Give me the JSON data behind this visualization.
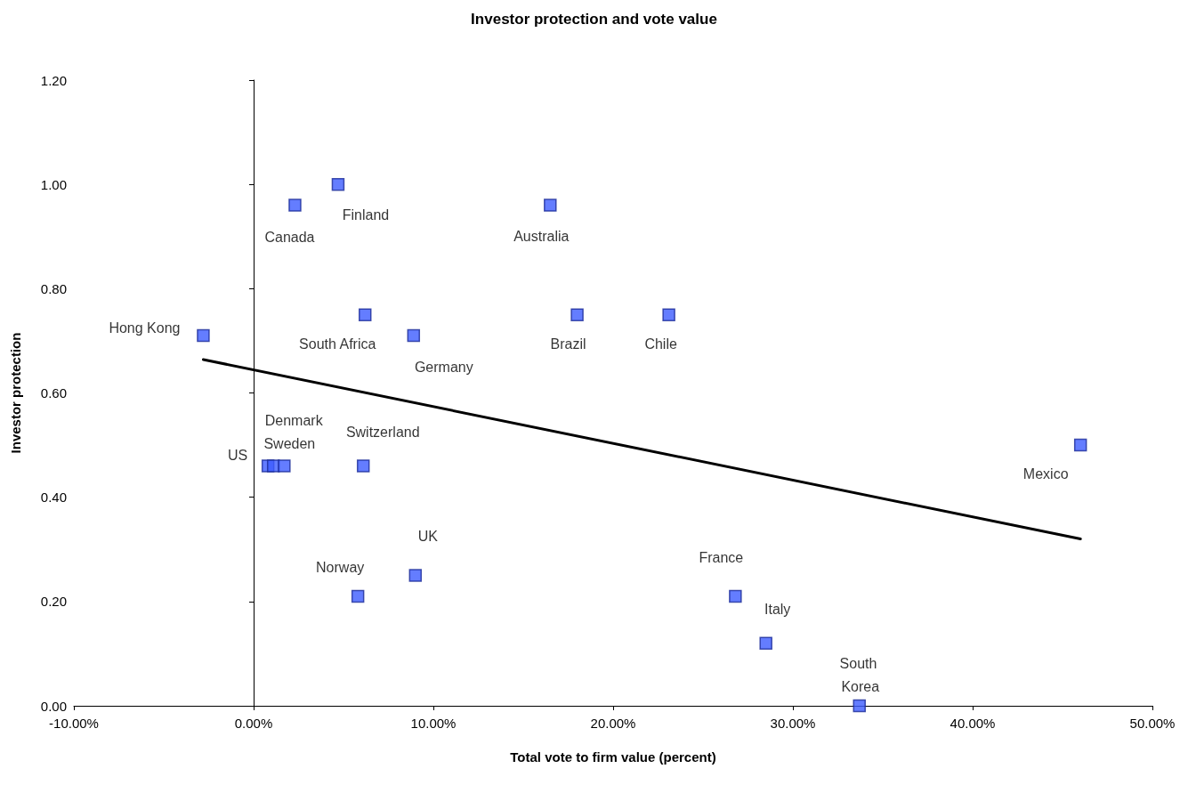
{
  "chart_data": {
    "type": "scatter",
    "title": "Investor protection and vote value",
    "xlabel": "Total vote to firm value (percent)",
    "ylabel": "Investor protection",
    "xlim": [
      -10,
      50
    ],
    "xticks": [
      {
        "value": -10,
        "label": "-10.00%"
      },
      {
        "value": 0,
        "label": "0.00%"
      },
      {
        "value": 10,
        "label": "10.00%"
      },
      {
        "value": 20,
        "label": "20.00%"
      },
      {
        "value": 30,
        "label": "30.00%"
      },
      {
        "value": 40,
        "label": "40.00%"
      },
      {
        "value": 50,
        "label": "50.00%"
      }
    ],
    "ylim": [
      0,
      1.2
    ],
    "yticks": [
      {
        "value": 0,
        "label": "0.00"
      },
      {
        "value": 0.2,
        "label": "0.20"
      },
      {
        "value": 0.4,
        "label": "0.40"
      },
      {
        "value": 0.6,
        "label": "0.60"
      },
      {
        "value": 0.8,
        "label": "0.80"
      },
      {
        "value": 1,
        "label": "1.00"
      },
      {
        "value": 1.2,
        "label": "1.20"
      }
    ],
    "marker": "square",
    "series": [
      {
        "color": "#3d5cff",
        "x": [
          -2.8,
          2.3,
          4.7,
          16.5,
          6.2,
          8.9,
          18.0,
          23.1,
          46.0,
          6.1,
          0.8,
          1.1,
          1.7,
          5.8,
          9.0,
          26.8,
          28.5,
          33.7
        ],
        "values": [
          0.71,
          0.96,
          1.0,
          0.96,
          0.75,
          0.71,
          0.75,
          0.75,
          0.5,
          0.46,
          0.46,
          0.46,
          0.46,
          0.21,
          0.25,
          0.21,
          0.12,
          0.0
        ]
      },
      {
        "type": "line",
        "color": "#000000",
        "marker": "none",
        "x": [
          -2.8,
          46.0
        ],
        "values": [
          0.664,
          0.32
        ]
      }
    ],
    "annotations": [
      {
        "text": "Hong Kong",
        "x": -2.8,
        "y": 0.71
      },
      {
        "text": "Canada",
        "x": 2.3,
        "y": 0.96
      },
      {
        "text": "Finland",
        "x": 4.7,
        "y": 1.0
      },
      {
        "text": "Australia",
        "x": 16.5,
        "y": 0.96
      },
      {
        "text": "South Africa",
        "x": 6.2,
        "y": 0.75
      },
      {
        "text": "Germany",
        "x": 8.9,
        "y": 0.71
      },
      {
        "text": "Brazil",
        "x": 18.0,
        "y": 0.75
      },
      {
        "text": "Chile",
        "x": 23.1,
        "y": 0.75
      },
      {
        "text": "Mexico",
        "x": 46.0,
        "y": 0.5
      },
      {
        "text": "Switzerland",
        "x": 6.1,
        "y": 0.46
      },
      {
        "text": "US",
        "x": 0.8,
        "y": 0.46
      },
      {
        "text": "Denmark",
        "x": 1.1,
        "y": 0.46
      },
      {
        "text": "Sweden",
        "x": 1.7,
        "y": 0.46
      },
      {
        "text": "Norway",
        "x": 5.8,
        "y": 0.21
      },
      {
        "text": "UK",
        "x": 9.0,
        "y": 0.25
      },
      {
        "text": "France",
        "x": 26.8,
        "y": 0.21
      },
      {
        "text": "Italy",
        "x": 28.5,
        "y": 0.12
      },
      {
        "text": "South Korea",
        "x": 33.7,
        "y": 0.0
      }
    ]
  }
}
